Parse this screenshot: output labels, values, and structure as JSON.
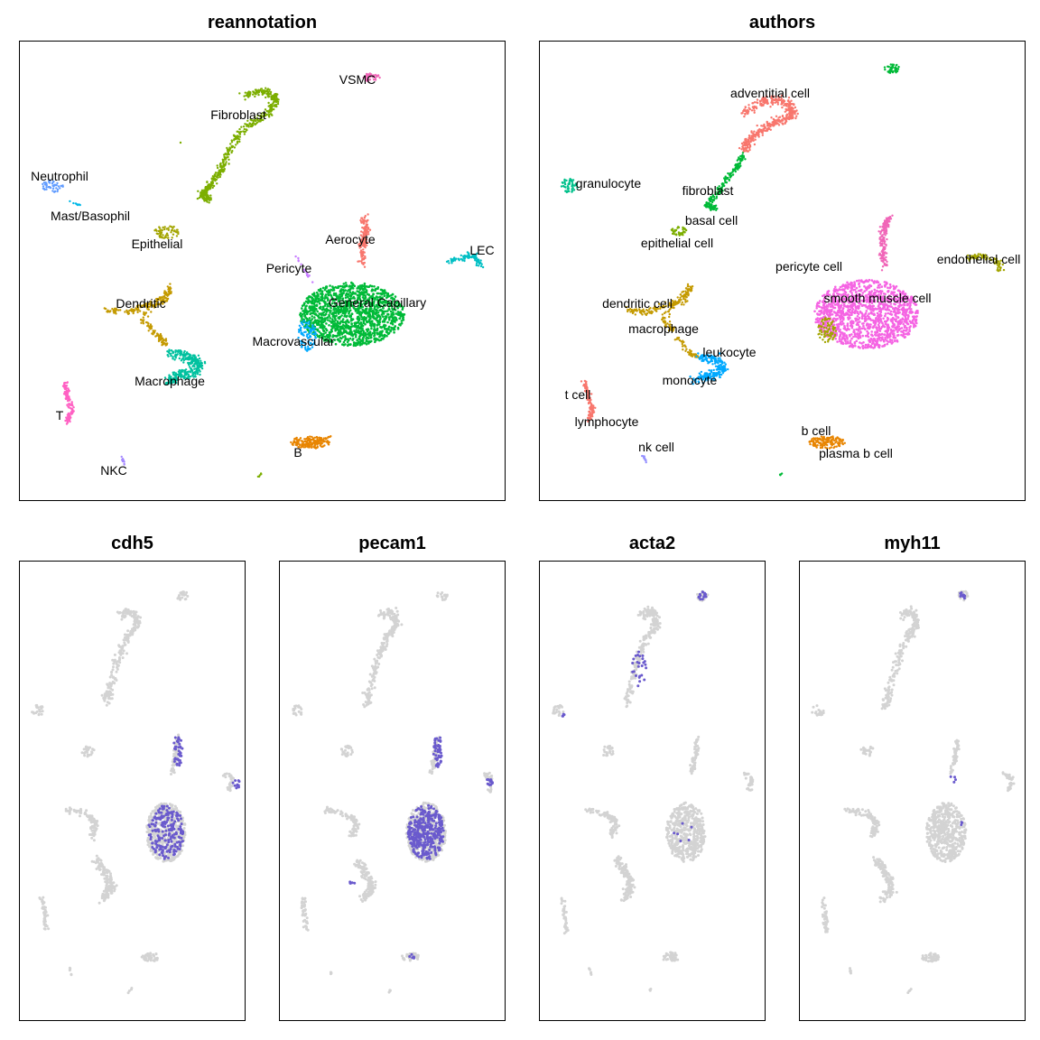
{
  "chart_data": [
    {
      "type": "scatter",
      "title": "reannotation",
      "xlabel": "",
      "ylabel": "",
      "cluster_labels": [
        "VSMC",
        "Fibroblast",
        "Neutrophil",
        "Mast/Basophil",
        "Epithelial",
        "Aerocyte",
        "LEC",
        "Pericyte",
        "General Capillary",
        "Dendritic",
        "Macrovascular",
        "Macrophage",
        "T",
        "B",
        "NKC"
      ],
      "colors": {
        "VSMC": "#f066b8",
        "Fibroblast": "#7cae00",
        "Neutrophil": "#619cff",
        "Mast/Basophil": "#00b8e7",
        "Epithelial": "#a3a500",
        "Aerocyte": "#f8766d",
        "LEC": "#00bfc4",
        "Pericyte": "#c77cff",
        "General Capillary": "#00ba38",
        "Dendritic": "#c49a00",
        "Macrovascular": "#00a9ff",
        "Macrophage": "#00c19f",
        "T": "#ff61c3",
        "B": "#e88500",
        "NKC": "#a58aff"
      }
    },
    {
      "type": "scatter",
      "title": "authors",
      "xlabel": "",
      "ylabel": "",
      "cluster_labels": [
        "adventitial cell",
        "fibroblast",
        "granulocyte",
        "basal cell",
        "epithelial cell",
        "pericyte cell",
        "endothelial cell",
        "smooth muscle cell",
        "dendritic cell",
        "macrophage",
        "leukocyte",
        "monocyte",
        "t cell",
        "lymphocyte",
        "nk cell",
        "b cell",
        "plasma b cell"
      ],
      "colors": {
        "adventitial cell": "#f8766d",
        "fibroblast": "#00ba38",
        "granulocyte": "#00c08b",
        "basal cell": "#7cae00",
        "epithelial cell": "#7cae00",
        "pericyte cell": "#f066b8",
        "endothelial cell": "#a3a500",
        "smooth muscle cell": "#f564e3",
        "dendritic cell": "#c49a00",
        "macrophage": "#c49a00",
        "leukocyte": "#00a9ff",
        "monocyte": "#00a9ff",
        "t cell": "#f8766d",
        "lymphocyte": "#f066b8",
        "nk cell": "#9590ff",
        "b cell": "#e88500",
        "plasma b cell": "#e88500"
      }
    },
    {
      "type": "scatter",
      "title": "cdh5",
      "expression_color": "#6a5acd",
      "base_color": "#d3d3d3"
    },
    {
      "type": "scatter",
      "title": "pecam1",
      "expression_color": "#6a5acd",
      "base_color": "#d3d3d3"
    },
    {
      "type": "scatter",
      "title": "acta2",
      "expression_color": "#6a5acd",
      "base_color": "#d3d3d3"
    },
    {
      "type": "scatter",
      "title": "myh11",
      "expression_color": "#6a5acd",
      "base_color": "#d3d3d3"
    }
  ]
}
